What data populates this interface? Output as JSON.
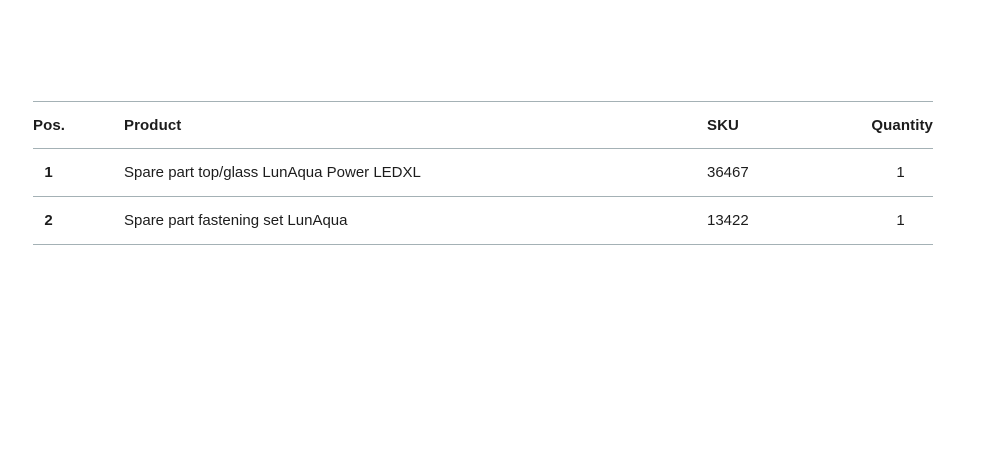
{
  "table": {
    "columns": {
      "pos": "Pos.",
      "product": "Product",
      "sku": "SKU",
      "quantity": "Quantity"
    },
    "rows": [
      {
        "pos": "1",
        "product": "Spare part top/glass LunAqua Power LEDXL",
        "sku": "36467",
        "quantity": "1"
      },
      {
        "pos": "2",
        "product": "Spare part fastening set LunAqua",
        "sku": "13422",
        "quantity": "1"
      }
    ],
    "colors": {
      "background": "#ffffff",
      "text": "#1c1c1c",
      "divider": "#a4b1b5"
    }
  }
}
